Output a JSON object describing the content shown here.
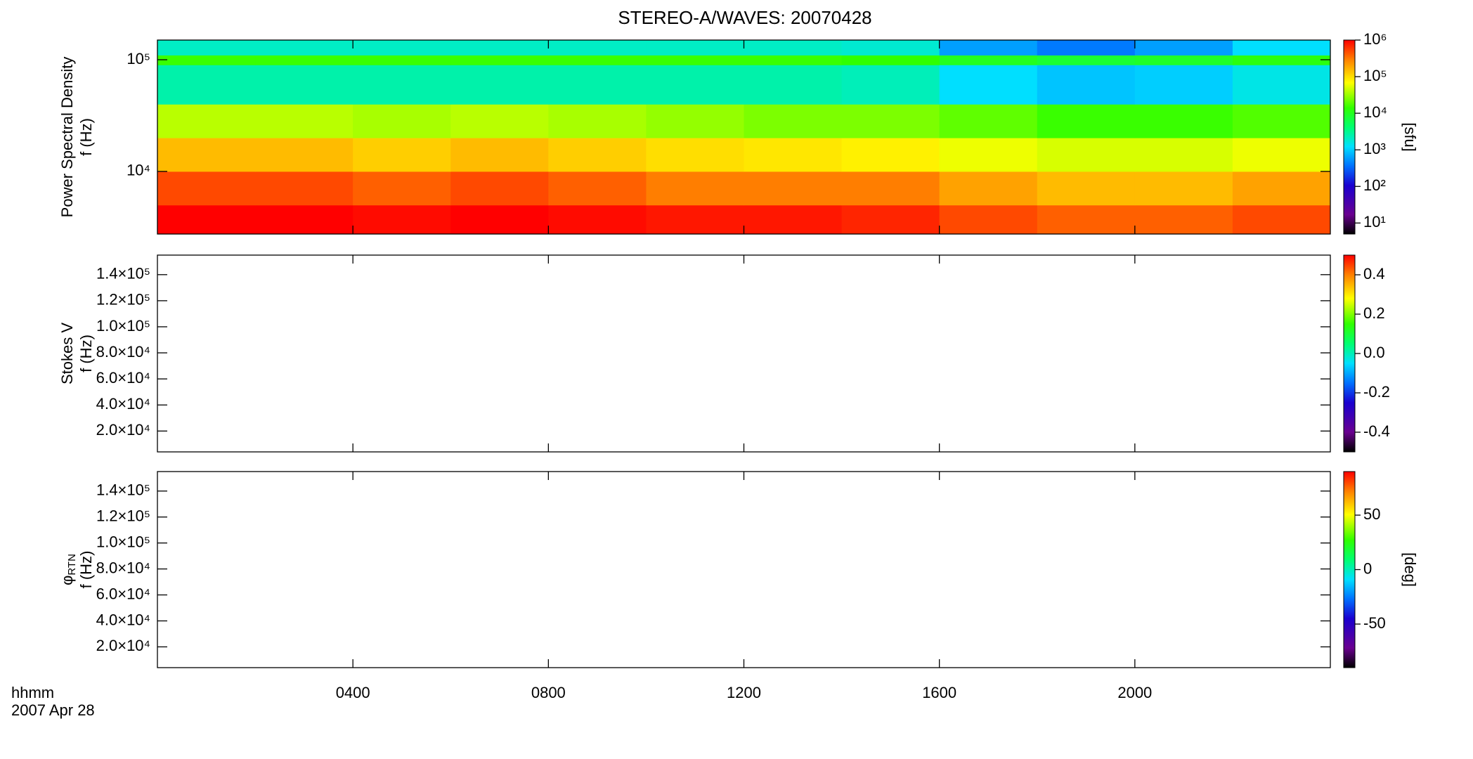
{
  "title": "STEREO-A/WAVES: 20070428",
  "xaxis": {
    "label_lines": [
      "hhmm",
      "2007 Apr 28"
    ],
    "xlim": [
      0,
      24
    ],
    "xticks": [
      {
        "value": 4,
        "label": "0400"
      },
      {
        "value": 8,
        "label": "0800"
      },
      {
        "value": 12,
        "label": "1200"
      },
      {
        "value": 16,
        "label": "1600"
      },
      {
        "value": 20,
        "label": "2000"
      }
    ]
  },
  "chart_data": [
    {
      "type": "heatmap",
      "ylabel_top": "Power Spectral Density",
      "ylabel": "f (Hz)",
      "ylog": true,
      "ylim": [
        2750,
        150000
      ],
      "yticks": [
        {
          "value": 10000,
          "label": "10⁴"
        },
        {
          "value": 100000,
          "label": "10⁵"
        }
      ],
      "xbins": [
        0,
        2,
        4,
        6,
        8,
        10,
        12,
        14,
        16,
        18,
        20,
        22,
        24
      ],
      "ybins": [
        2750,
        5000,
        10000,
        20000,
        40000,
        90000,
        110000,
        150000
      ],
      "values": [
        [
          1000000,
          1000000,
          900000,
          1000000,
          900000,
          800000,
          800000,
          700000,
          500000,
          400000,
          400000,
          500000
        ],
        [
          500000,
          500000,
          400000,
          500000,
          400000,
          300000,
          300000,
          300000,
          200000,
          150000,
          150000,
          200000
        ],
        [
          150000,
          150000,
          120000,
          150000,
          120000,
          100000,
          90000,
          80000,
          60000,
          50000,
          50000,
          60000
        ],
        [
          40000,
          40000,
          35000,
          40000,
          35000,
          30000,
          25000,
          25000,
          20000,
          15000,
          15000,
          18000
        ],
        [
          2500,
          2500,
          2500,
          2500,
          2500,
          2500,
          2500,
          2200,
          1200,
          900,
          1000,
          1500
        ],
        [
          15000,
          15000,
          15000,
          15000,
          15000,
          15000,
          15000,
          14000,
          10000,
          8000,
          9000,
          12000
        ],
        [
          2000,
          2000,
          2000,
          2000,
          2000,
          2000,
          2000,
          1800,
          600,
          400,
          600,
          1200
        ]
      ],
      "zlog": true,
      "zlim": [
        5,
        1000000
      ],
      "zlabel": "[sfu]",
      "zticks": [
        {
          "value": 10,
          "label": "10¹"
        },
        {
          "value": 100,
          "label": "10²"
        },
        {
          "value": 1000,
          "label": "10³"
        },
        {
          "value": 10000,
          "label": "10⁴"
        },
        {
          "value": 100000,
          "label": "10⁵"
        },
        {
          "value": 1000000,
          "label": "10⁶"
        }
      ]
    },
    {
      "type": "heatmap",
      "ylabel_top": "Stokes V",
      "ylabel": "f (Hz)",
      "ylim": [
        4000,
        155000
      ],
      "yticks": [
        {
          "value": 20000,
          "label": "2.0×10⁴"
        },
        {
          "value": 40000,
          "label": "4.0×10⁴"
        },
        {
          "value": 60000,
          "label": "6.0×10⁴"
        },
        {
          "value": 80000,
          "label": "8.0×10⁴"
        },
        {
          "value": 100000,
          "label": "1.0×10⁵"
        },
        {
          "value": 120000,
          "label": "1.2×10⁵"
        },
        {
          "value": 140000,
          "label": "1.4×10⁵"
        }
      ],
      "zlim": [
        -0.5,
        0.5
      ],
      "zticks": [
        -0.4,
        -0.2,
        {
          "value": 0,
          "label": "0.0"
        },
        0.2,
        0.4
      ]
    },
    {
      "type": "heatmap",
      "ylabel_top": "φ",
      "ylabel_sub": "RTN",
      "ylabel": "f (Hz)",
      "ylim": [
        4000,
        155000
      ],
      "yticks": [
        {
          "value": 20000,
          "label": "2.0×10⁴"
        },
        {
          "value": 40000,
          "label": "4.0×10⁴"
        },
        {
          "value": 60000,
          "label": "6.0×10⁴"
        },
        {
          "value": 80000,
          "label": "8.0×10⁴"
        },
        {
          "value": 100000,
          "label": "1.0×10⁵"
        },
        {
          "value": 120000,
          "label": "1.2×10⁵"
        },
        {
          "value": 140000,
          "label": "1.4×10⁵"
        }
      ],
      "zlim": [
        -90,
        90
      ],
      "zlabel": "[deg]",
      "zticks": [
        -50,
        0,
        50
      ]
    }
  ]
}
